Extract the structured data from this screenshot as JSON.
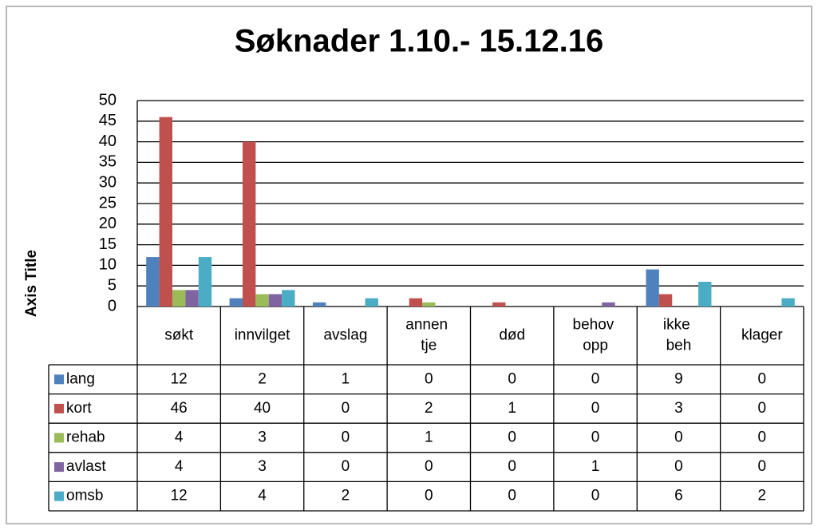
{
  "chart_data": {
    "type": "bar",
    "title": "Søknader 1.10.- 15.12.16",
    "y_axis_label": "Axis Title",
    "categories": [
      "søkt",
      "innvilget",
      "avslag",
      "annen tje",
      "død",
      "behov opp",
      "ikke beh",
      "klager"
    ],
    "series": [
      {
        "name": "lang",
        "color": "#4f81bd",
        "values": [
          12,
          2,
          1,
          0,
          0,
          0,
          9,
          0
        ]
      },
      {
        "name": "kort",
        "color": "#c0504d",
        "values": [
          46,
          40,
          0,
          2,
          1,
          0,
          3,
          0
        ]
      },
      {
        "name": "rehab",
        "color": "#9bbb59",
        "values": [
          4,
          3,
          0,
          1,
          0,
          0,
          0,
          0
        ]
      },
      {
        "name": "avlast",
        "color": "#8064a2",
        "values": [
          4,
          3,
          0,
          0,
          0,
          1,
          0,
          0
        ]
      },
      {
        "name": "omsb",
        "color": "#4bacc6",
        "values": [
          12,
          4,
          2,
          0,
          0,
          0,
          6,
          2
        ]
      }
    ],
    "ylim": [
      0,
      50
    ],
    "yticks": [
      0,
      5,
      10,
      15,
      20,
      25,
      30,
      35,
      40,
      45,
      50
    ],
    "grid": true,
    "data_table": true
  }
}
